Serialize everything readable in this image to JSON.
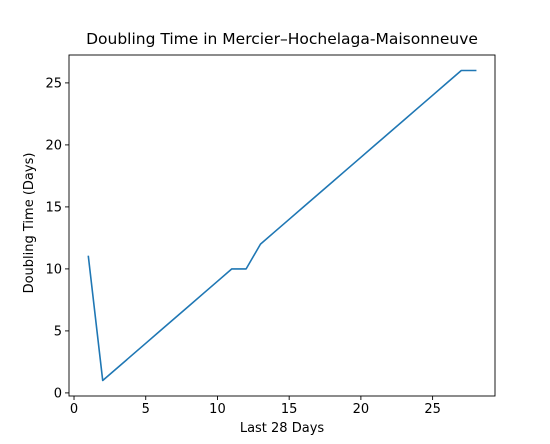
{
  "chart_data": {
    "type": "line",
    "title": "Doubling Time in  Mercier–Hochelaga-Maisonneuve",
    "xlabel": "Last 28 Days",
    "ylabel": "Doubling Time (Days)",
    "xlim": [
      -0.35,
      29.35
    ],
    "ylim": [
      -0.25,
      27.25
    ],
    "x_ticks": [
      0,
      5,
      10,
      15,
      20,
      25
    ],
    "y_ticks": [
      0,
      5,
      10,
      15,
      20,
      25
    ],
    "grid": false,
    "series": [
      {
        "color": "#1f77b4",
        "x": [
          1,
          2,
          3,
          4,
          5,
          6,
          7,
          8,
          9,
          10,
          11,
          12,
          13,
          14,
          15,
          16,
          17,
          18,
          19,
          20,
          21,
          22,
          23,
          24,
          25,
          26,
          27,
          28
        ],
        "y": [
          11,
          1,
          2,
          3,
          4,
          5,
          6,
          7,
          8,
          9,
          10,
          10,
          12,
          13,
          14,
          15,
          16,
          17,
          18,
          19,
          20,
          21,
          22,
          23,
          24,
          25,
          26,
          26
        ]
      }
    ]
  }
}
